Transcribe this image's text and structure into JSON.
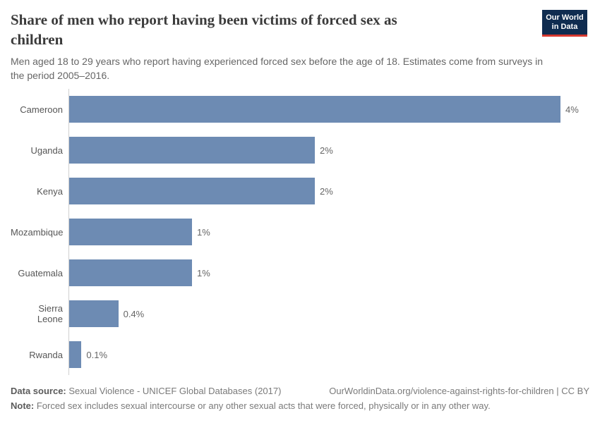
{
  "logo": {
    "line1": "Our World",
    "line2": "in Data"
  },
  "header": {
    "title_lines": {
      "0": "Share of men who report having been victims of forced sex as",
      "1": "children"
    },
    "subtitle_lines": {
      "0": "Men aged 18 to 29 years who report having experienced forced sex before the age of 18. Estimates come from surveys in",
      "1": "the period 2005–2016."
    }
  },
  "chart_data": {
    "type": "bar",
    "orientation": "horizontal",
    "title": "Share of men who report having been victims of forced sex as children",
    "xlabel": "",
    "ylabel": "",
    "unit": "%",
    "xlim": [
      0,
      4.1
    ],
    "grid": false,
    "legend": false,
    "categories": [
      "Cameroon",
      "Uganda",
      "Kenya",
      "Mozambique",
      "Guatemala",
      "Sierra Leone",
      "Rwanda"
    ],
    "values": [
      4,
      2,
      2,
      1,
      1,
      0.4,
      0.1
    ],
    "value_labels": [
      "4%",
      "2%",
      "2%",
      "1%",
      "1%",
      "0.4%",
      "0.1%"
    ],
    "bar_color": "#6d8bb3",
    "axis_line_color": "#d0d0d0"
  },
  "footer": {
    "datasource_label": "Data source:",
    "datasource_value": " Sexual Violence - UNICEF Global Databases (2017)",
    "link": "OurWorldinData.org/violence-against-rights-for-children | CC BY",
    "note_label": "Note:",
    "note_value": " Forced sex includes sexual intercourse or any other sexual acts that were forced, physically or in any other way."
  }
}
